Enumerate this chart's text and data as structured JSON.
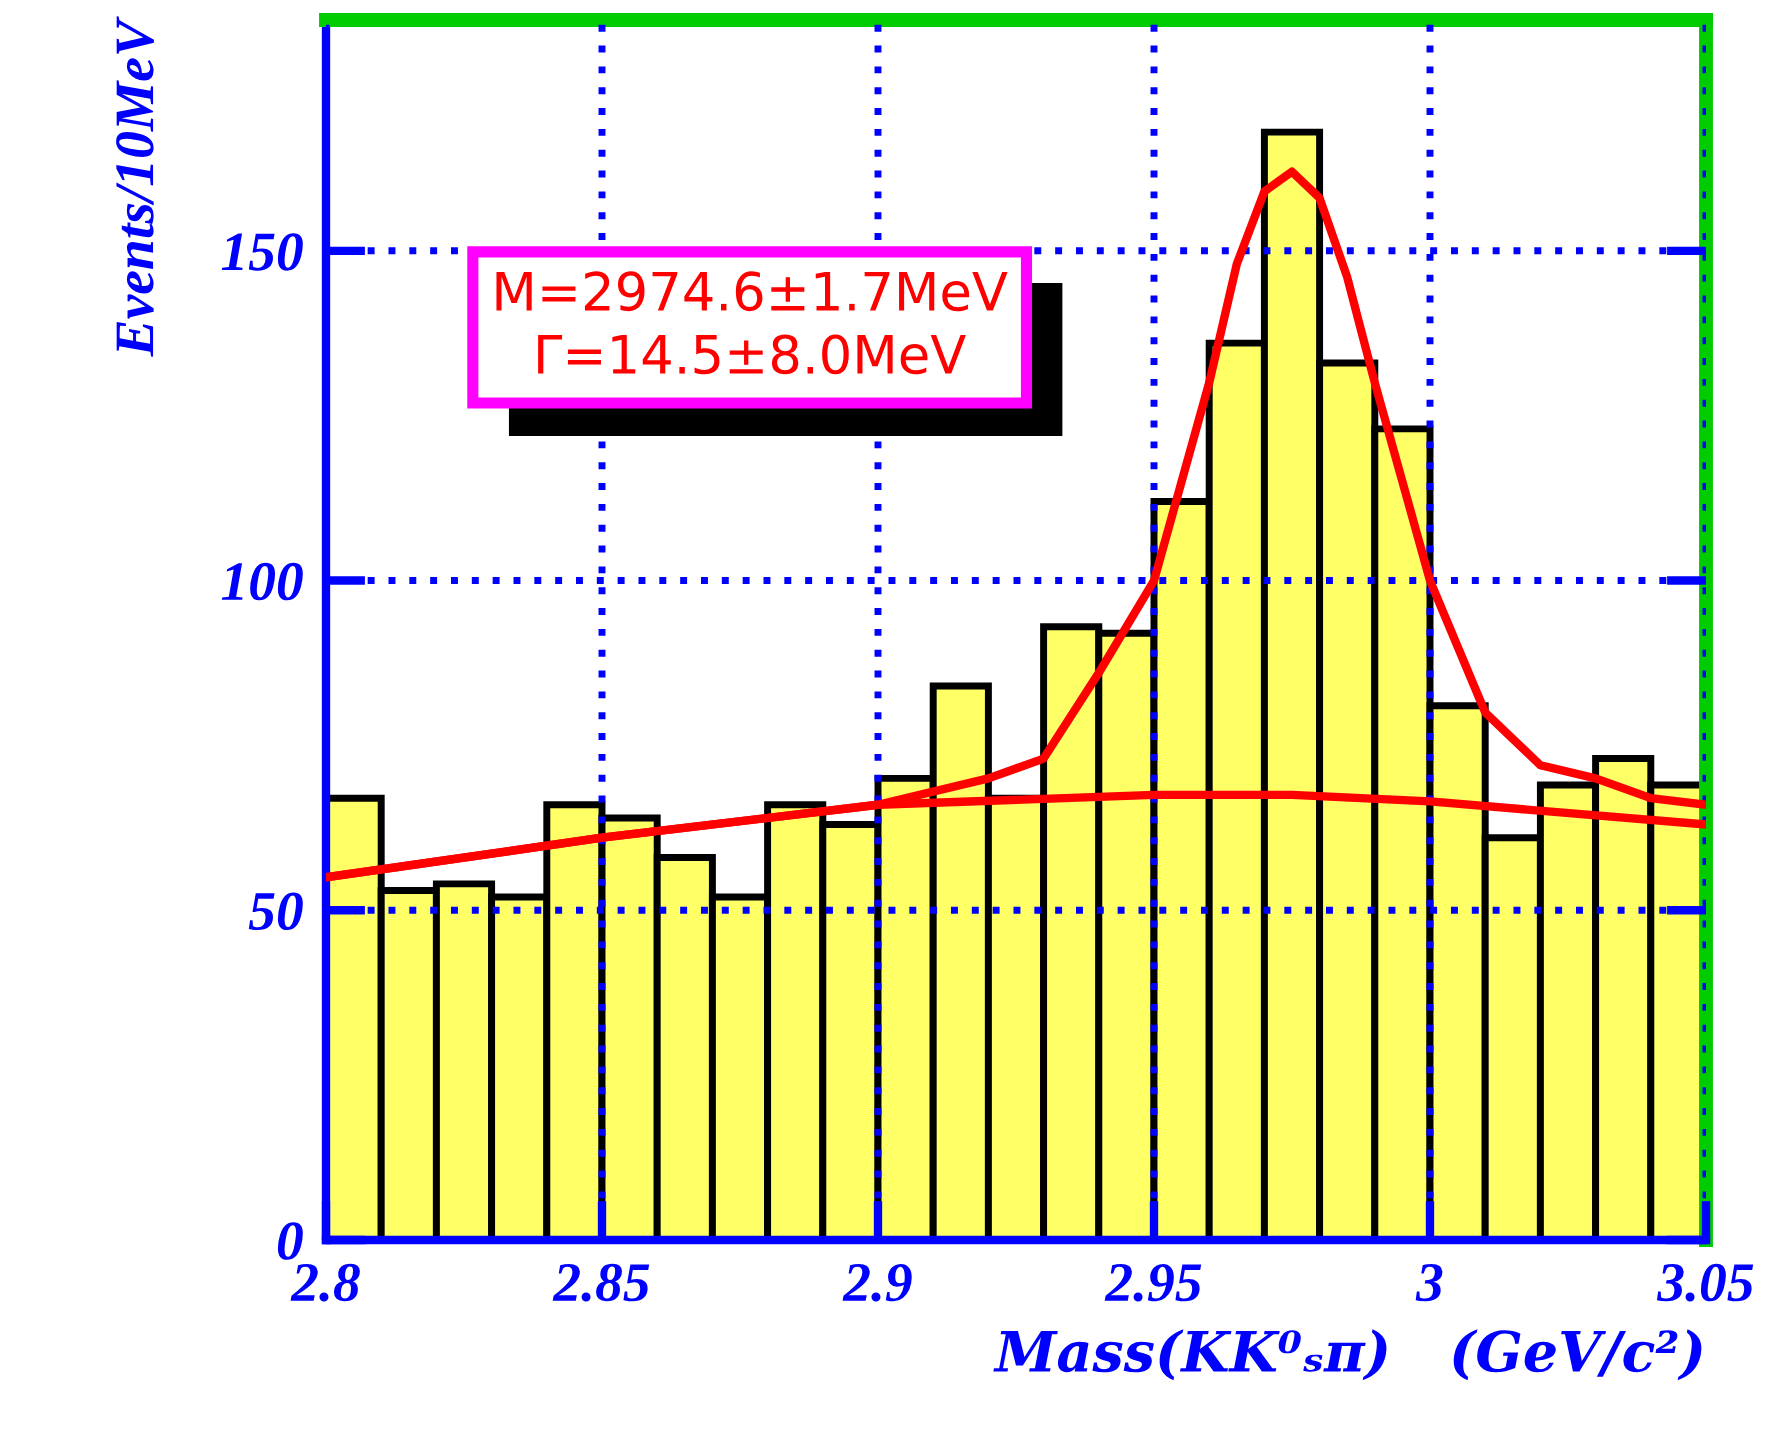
{
  "chart_data": {
    "type": "histogram",
    "xlabel": "Mass(KK⁰ₛπ)   (GeV/c²)",
    "ylabel": "Events/10MeV",
    "bins": [
      2.8,
      2.81,
      2.82,
      2.83,
      2.84,
      2.85,
      2.86,
      2.87,
      2.88,
      2.89,
      2.9,
      2.91,
      2.92,
      2.93,
      2.94,
      2.95,
      2.96,
      2.97,
      2.98,
      2.99,
      3.0,
      3.01,
      3.02,
      3.03,
      3.04,
      3.05
    ],
    "values": [
      67,
      53,
      54,
      52,
      66,
      64,
      58,
      52,
      66,
      63,
      70,
      84,
      67,
      93,
      92,
      112,
      136,
      168,
      133,
      123,
      81,
      61,
      69,
      73,
      69
    ],
    "color": "#ffff66",
    "series": [
      {
        "type": "line",
        "color": "#ff0000",
        "x": [
          2.8,
          2.85,
          2.9,
          2.92,
          2.93,
          2.94,
          2.95,
          2.96,
          2.965,
          2.97,
          2.975,
          2.98,
          2.985,
          2.99,
          3.0,
          3.01,
          3.02,
          3.03,
          3.04,
          3.05
        ],
        "values": [
          55,
          61,
          66,
          70,
          73,
          86,
          100,
          130,
          148,
          159,
          162,
          158,
          146,
          130,
          100,
          80,
          72,
          70,
          67,
          66
        ]
      },
      {
        "type": "line",
        "color": "#ff0000",
        "x": [
          2.8,
          2.85,
          2.9,
          2.95,
          2.975,
          3.0,
          3.05
        ],
        "values": [
          55,
          61,
          66,
          67.5,
          67.5,
          66.5,
          63
        ]
      }
    ],
    "annotations": [
      "M=2974.6±1.7MeV\nΓ=14.5±8.0MeV"
    ],
    "xlim": [
      2.8,
      3.05
    ],
    "ylim": [
      0,
      185
    ],
    "xticks": [
      2.8,
      2.85,
      2.9,
      2.95,
      {
        "value": 3.0,
        "label": "3"
      },
      3.05
    ],
    "yticks": [
      0,
      50,
      100,
      150
    ],
    "grid": true
  }
}
